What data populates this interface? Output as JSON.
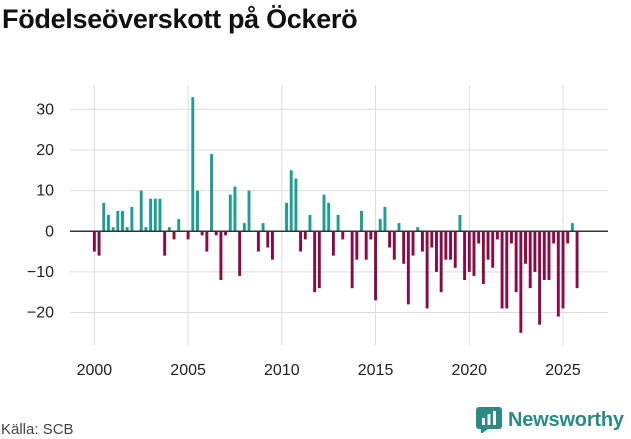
{
  "title": "Födelseöverskott på Öckerö",
  "source": "Källa: SCB",
  "brand": "Newsworthy",
  "colors": {
    "positive": "#1a9e96",
    "negative": "#8b0a43",
    "grid": "#dddddd",
    "zero": "#333333",
    "brand": "#2a8a86"
  },
  "chart_data": {
    "type": "bar",
    "title": "Födelseöverskott på Öckerö",
    "xlabel": "",
    "ylabel": "",
    "granularity": "monthly",
    "start": 2000.0,
    "step": 0.25,
    "ylim": [
      -28,
      36
    ],
    "yticks": [
      -20,
      -10,
      0,
      10,
      20,
      30
    ],
    "ytick_labels": [
      "−20",
      "−10",
      "0",
      "10",
      "20",
      "30"
    ],
    "xlim": [
      1998.7,
      2027.4
    ],
    "xticks": [
      2000,
      2005,
      2010,
      2015,
      2020,
      2025
    ],
    "xtick_labels": [
      "2000",
      "2005",
      "2010",
      "2015",
      "2020",
      "2025"
    ],
    "values": [
      -5,
      -6,
      7,
      4,
      1,
      5,
      5,
      1,
      6,
      0,
      10,
      1,
      8,
      8,
      8,
      -6,
      1,
      -2,
      3,
      0,
      -2,
      33,
      10,
      -1,
      -5,
      19,
      -1,
      -12,
      -1,
      9,
      11,
      -11,
      2,
      10,
      0,
      -5,
      2,
      -4,
      -7,
      0,
      0,
      7,
      15,
      13,
      -5,
      -2,
      4,
      -15,
      -14,
      9,
      7,
      -6,
      4,
      -2,
      0,
      -14,
      -7,
      5,
      -7,
      -2,
      -17,
      3,
      6,
      -4,
      -7,
      2,
      -8,
      -18,
      -6,
      1,
      -5,
      -19,
      -4,
      -10,
      -15,
      -7,
      -7,
      -9,
      4,
      -12,
      -10,
      -11,
      -3,
      -13,
      -7,
      -9,
      -2,
      -19,
      -19,
      -3,
      -15,
      -25,
      -8,
      -14,
      -10,
      -23,
      -12,
      -12,
      -3,
      -21,
      -19,
      -3,
      2,
      -14
    ]
  }
}
